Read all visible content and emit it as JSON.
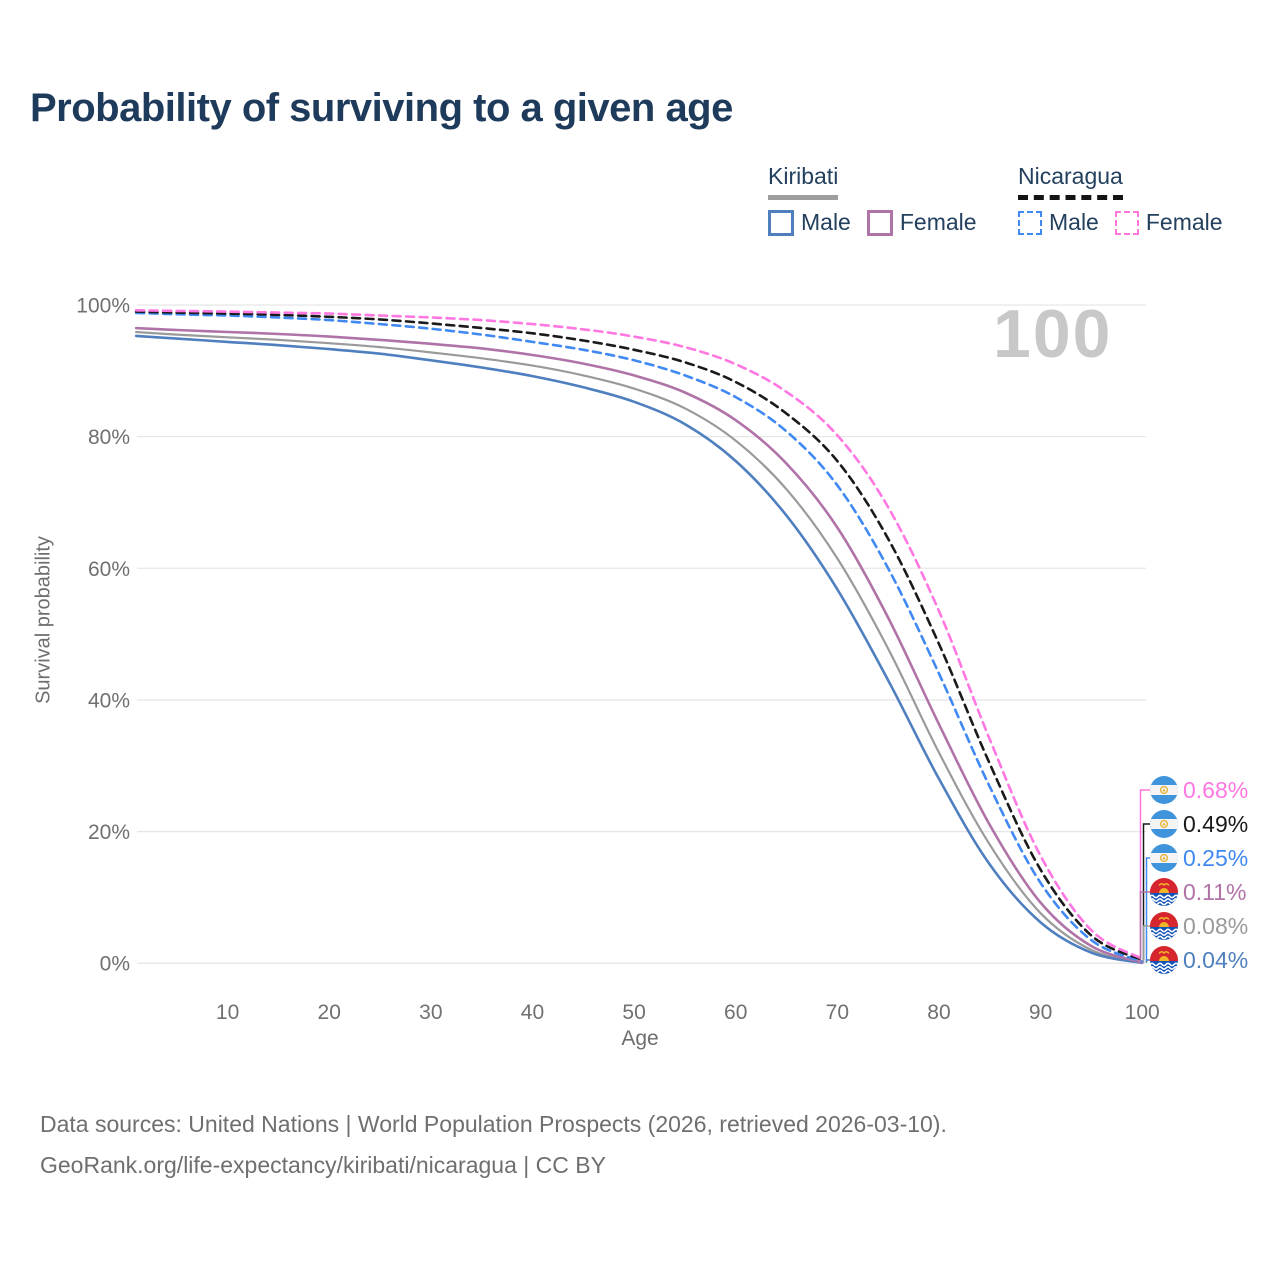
{
  "title": "Probability of surviving to a given age",
  "watermark": "100",
  "legend": {
    "groups": [
      {
        "country": "Kiribati",
        "line_style": "solid",
        "underline_color": "#9e9e9e",
        "items": [
          {
            "label": "Male",
            "color": "#4f7fbf"
          },
          {
            "label": "Female",
            "color": "#b073a8"
          }
        ]
      },
      {
        "country": "Nicaragua",
        "line_style": "dashed",
        "underline_color": "#141414",
        "items": [
          {
            "label": "Male",
            "color": "#4189f2"
          },
          {
            "label": "Female",
            "color": "#ff77e1"
          }
        ]
      }
    ]
  },
  "chart_data": {
    "type": "line",
    "title": "Probability of surviving to a given age",
    "xlabel": "Age",
    "ylabel": "Survival probability",
    "xlim": [
      1,
      100
    ],
    "ylim": [
      0,
      100
    ],
    "grid": "horizontal-only",
    "legend_position": "top-right",
    "x_ticks": [
      10,
      20,
      30,
      40,
      50,
      60,
      70,
      80,
      90,
      100
    ],
    "y_tick_values": [
      0,
      20,
      40,
      60,
      80,
      100
    ],
    "y_tick_labels": [
      "0%",
      "20%",
      "40%",
      "60%",
      "80%",
      "100%"
    ],
    "x": [
      1,
      5,
      10,
      15,
      20,
      25,
      30,
      35,
      40,
      45,
      50,
      55,
      60,
      65,
      70,
      75,
      80,
      85,
      90,
      95,
      100
    ],
    "series": [
      {
        "id": "kiribati-total",
        "name": "Kiribati – Total",
        "country": "Kiribati",
        "sex": "Total",
        "color": "#9a9a9a",
        "dash": false,
        "values": [
          95.9,
          95.5,
          95.1,
          94.7,
          94.2,
          93.6,
          92.8,
          91.9,
          90.8,
          89.3,
          87.3,
          84.3,
          79.4,
          72.0,
          61.5,
          47.8,
          32.0,
          18.0,
          7.6,
          2.0,
          0.08
        ]
      },
      {
        "id": "kiribati-male",
        "name": "Kiribati – Male",
        "country": "Kiribati",
        "sex": "Male",
        "color": "#4f7fbf",
        "dash": false,
        "values": [
          95.3,
          94.9,
          94.4,
          93.9,
          93.3,
          92.6,
          91.6,
          90.5,
          89.2,
          87.5,
          85.3,
          81.9,
          76.3,
          68.0,
          56.8,
          43.0,
          28.0,
          15.0,
          6.2,
          1.6,
          0.04
        ]
      },
      {
        "id": "kiribati-female",
        "name": "Kiribati – Female",
        "country": "Kiribati",
        "sex": "Female",
        "color": "#b073a8",
        "dash": false,
        "values": [
          96.5,
          96.2,
          95.9,
          95.6,
          95.2,
          94.7,
          94.1,
          93.4,
          92.4,
          91.1,
          89.3,
          86.7,
          82.5,
          75.9,
          66.2,
          52.5,
          36.3,
          21.0,
          9.2,
          2.6,
          0.11
        ]
      },
      {
        "id": "nicaragua-male",
        "name": "Nicaragua – Male",
        "country": "Nicaragua",
        "sex": "Male",
        "color": "#4189f2",
        "dash": true,
        "values": [
          98.8,
          98.6,
          98.4,
          98.1,
          97.7,
          97.1,
          96.4,
          95.5,
          94.4,
          93.2,
          91.6,
          89.3,
          86.0,
          80.8,
          72.6,
          60.0,
          44.0,
          26.8,
          12.2,
          3.5,
          0.25
        ]
      },
      {
        "id": "nicaragua-total",
        "name": "Nicaragua – Total",
        "country": "Nicaragua",
        "sex": "Total",
        "color": "#1a1a1a",
        "dash": true,
        "values": [
          99.0,
          98.85,
          98.7,
          98.5,
          98.2,
          97.8,
          97.2,
          96.5,
          95.7,
          94.6,
          93.2,
          91.3,
          88.3,
          83.5,
          76.3,
          64.5,
          48.5,
          30.3,
          14.2,
          4.2,
          0.49
        ]
      },
      {
        "id": "nicaragua-female",
        "name": "Nicaragua – Female",
        "country": "Nicaragua",
        "sex": "Female",
        "color": "#ff77e1",
        "dash": true,
        "values": [
          99.2,
          99.1,
          99.0,
          98.85,
          98.7,
          98.4,
          98.1,
          97.7,
          97.1,
          96.3,
          95.2,
          93.6,
          91.0,
          86.8,
          80.2,
          69.3,
          53.5,
          34.0,
          16.3,
          5.0,
          0.68
        ]
      }
    ],
    "end_labels": [
      {
        "series": "nicaragua-female",
        "text": "0.68%",
        "flag": "nicaragua"
      },
      {
        "series": "nicaragua-total",
        "text": "0.49%",
        "flag": "nicaragua"
      },
      {
        "series": "nicaragua-male",
        "text": "0.25%",
        "flag": "nicaragua"
      },
      {
        "series": "kiribati-female",
        "text": "0.11%",
        "flag": "kiribati"
      },
      {
        "series": "kiribati-total",
        "text": "0.08%",
        "flag": "kiribati"
      },
      {
        "series": "kiribati-male",
        "text": "0.04%",
        "flag": "kiribati"
      }
    ]
  },
  "footer": {
    "line1": "Data sources: United Nations | World Population Prospects (2026, retrieved 2026-03-10).",
    "line2": "GeoRank.org/life-expectancy/kiribati/nicaragua | CC BY"
  }
}
